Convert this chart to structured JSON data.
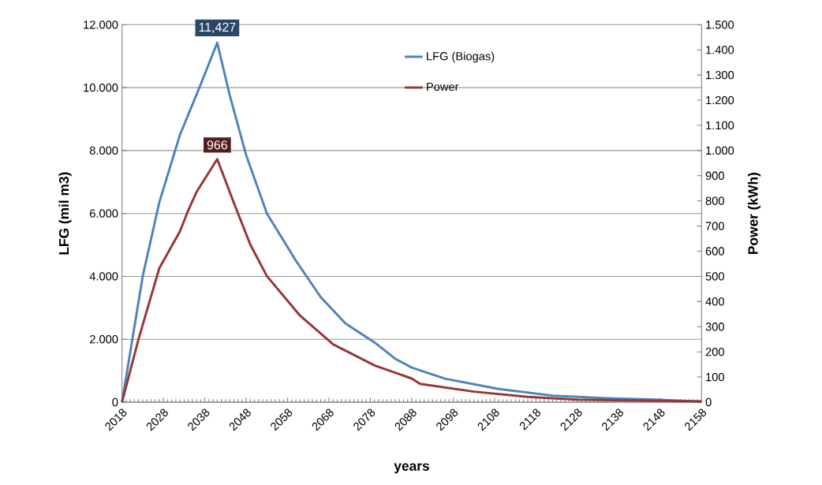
{
  "chart_data": {
    "type": "line",
    "xlabel": "years",
    "ylabel": "LFG (mil m3)",
    "y2label": "Power (kWh)",
    "xlim": [
      2018,
      2158
    ],
    "xticks": [
      2018,
      2028,
      2038,
      2048,
      2058,
      2068,
      2078,
      2088,
      2098,
      2108,
      2118,
      2128,
      2138,
      2148,
      2158
    ],
    "ylim": [
      0,
      12000
    ],
    "yticks": [
      0,
      {
        "value": 2000,
        "label": "2.000"
      },
      {
        "value": 4000,
        "label": "4.000"
      },
      {
        "value": 6000,
        "label": "6.000"
      },
      {
        "value": 8000,
        "label": "8.000"
      },
      {
        "value": 10000,
        "label": "10.000"
      },
      {
        "value": 12000,
        "label": "12.000"
      }
    ],
    "y2lim": [
      0,
      1500
    ],
    "y2ticks": [
      0,
      100,
      200,
      300,
      400,
      500,
      600,
      700,
      800,
      900,
      {
        "value": 1000,
        "label": "1.000"
      },
      {
        "value": 1100,
        "label": "1.100"
      },
      {
        "value": 1200,
        "label": "1.200"
      },
      {
        "value": 1300,
        "label": "1.300"
      },
      {
        "value": 1400,
        "label": "1.400"
      },
      {
        "value": 1500,
        "label": "1.500"
      }
    ],
    "grid": "y",
    "legend": "top right",
    "marker": "none",
    "line_style": "solid",
    "series": [
      {
        "name": "LFG (Biogas)",
        "color": "#4f81bd",
        "x": [
          2018,
          2023,
          2027,
          2032,
          2037,
          2041,
          2044,
          2048,
          2053,
          2060,
          2066,
          2072,
          2079,
          2084,
          2088,
          2096,
          2109,
          2122,
          2135,
          2147,
          2158
        ],
        "values": [
          0,
          4000,
          6350,
          8500,
          10100,
          11427,
          9770,
          7850,
          6000,
          4500,
          3340,
          2500,
          1900,
          1380,
          1100,
          750,
          420,
          210,
          125,
          80,
          20
        ]
      },
      {
        "name": "Power",
        "color": "#953735",
        "axis": "y2",
        "x": [
          2018,
          2022,
          2027,
          2032,
          2034,
          2036,
          2041,
          2045,
          2049,
          2053,
          2061,
          2069,
          2079,
          2088,
          2090,
          2103,
          2116,
          2128,
          2158
        ],
        "values": [
          0,
          251,
          532,
          679,
          762,
          835,
          966,
          793,
          626,
          501,
          344,
          230,
          146,
          94,
          73,
          42,
          21,
          10,
          3
        ]
      }
    ],
    "annotations": [
      "11,427",
      "966"
    ]
  }
}
